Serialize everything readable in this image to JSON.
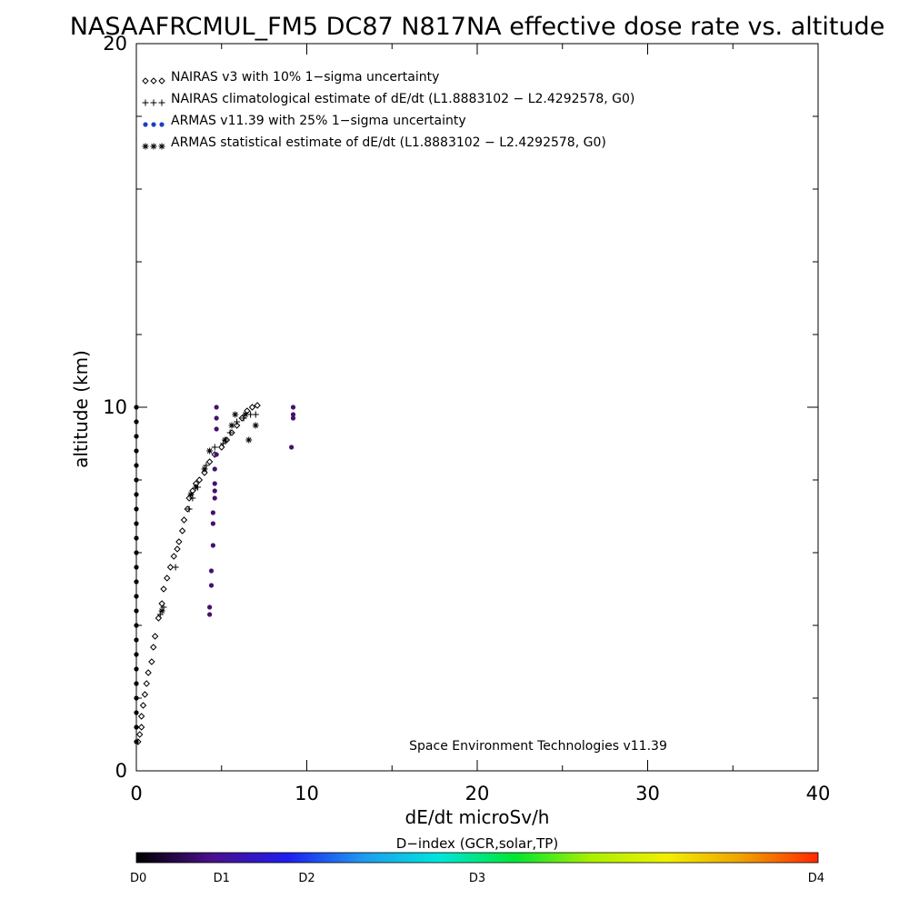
{
  "chart_data": {
    "type": "scatter",
    "title": "NASAAFRCMUL_FM5 DC87 N817NA effective dose rate vs. altitude",
    "xlabel": "dE/dt microSv/h",
    "ylabel": "altitude (km)",
    "xlim": [
      0,
      40
    ],
    "ylim": [
      0,
      20
    ],
    "x_ticks": [
      "0",
      "10",
      "20",
      "30",
      "40"
    ],
    "y_ticks": [
      "0",
      "10",
      "20"
    ],
    "grid": false,
    "legend_position": "top-left",
    "annotation": "Space Environment Technologies v11.39",
    "colorbar": {
      "title": "D−index (GCR,solar,TP)",
      "labels": [
        "D0",
        "D1",
        "D2",
        "D3",
        "D4"
      ],
      "positions": [
        0,
        0.125,
        0.25,
        0.5,
        1.0
      ],
      "colors": [
        "#000000",
        "#4b0f8c",
        "#1e1ef0",
        "#1e9bf0",
        "#00e6dc",
        "#00e632",
        "#aaf000",
        "#f0f000",
        "#f0a000",
        "#ff2800"
      ]
    },
    "series": [
      {
        "name": "NAIRAS v3 with 10% 1−sigma uncertainty",
        "marker": "diamond",
        "color": "#000000",
        "points": [
          [
            0.1,
            0.8
          ],
          [
            0.2,
            1.0
          ],
          [
            0.3,
            1.2
          ],
          [
            0.3,
            1.5
          ],
          [
            0.4,
            1.8
          ],
          [
            0.5,
            2.1
          ],
          [
            0.6,
            2.4
          ],
          [
            0.7,
            2.7
          ],
          [
            0.9,
            3.0
          ],
          [
            1.0,
            3.4
          ],
          [
            1.1,
            3.7
          ],
          [
            1.3,
            4.2
          ],
          [
            1.5,
            4.6
          ],
          [
            1.6,
            5.0
          ],
          [
            1.8,
            5.3
          ],
          [
            2.0,
            5.6
          ],
          [
            2.2,
            5.9
          ],
          [
            2.4,
            6.1
          ],
          [
            2.5,
            6.3
          ],
          [
            2.7,
            6.6
          ],
          [
            2.8,
            6.9
          ],
          [
            3.0,
            7.2
          ],
          [
            3.1,
            7.5
          ],
          [
            3.3,
            7.7
          ],
          [
            3.5,
            7.9
          ],
          [
            3.7,
            8.0
          ],
          [
            4.0,
            8.2
          ],
          [
            4.3,
            8.5
          ],
          [
            4.6,
            8.7
          ],
          [
            5.0,
            8.9
          ],
          [
            5.3,
            9.1
          ],
          [
            5.6,
            9.3
          ],
          [
            5.9,
            9.5
          ],
          [
            6.2,
            9.7
          ],
          [
            6.5,
            9.9
          ],
          [
            6.8,
            10.0
          ],
          [
            7.1,
            10.05
          ]
        ]
      },
      {
        "name": "NAIRAS climatological estimate of dE/dt (L1.8883102 − L2.4292578, G0)",
        "marker": "plus",
        "color": "#000000",
        "points": [
          [
            1.4,
            4.3
          ],
          [
            1.6,
            4.5
          ],
          [
            2.3,
            5.6
          ],
          [
            3.1,
            7.2
          ],
          [
            3.3,
            7.5
          ],
          [
            3.6,
            7.8
          ],
          [
            4.1,
            8.4
          ],
          [
            4.6,
            8.9
          ],
          [
            5.1,
            9.0
          ],
          [
            5.5,
            9.3
          ],
          [
            5.9,
            9.6
          ],
          [
            6.3,
            9.7
          ],
          [
            6.7,
            9.8
          ],
          [
            7.0,
            9.8
          ]
        ]
      },
      {
        "name": "ARMAS v11.39 with 25% 1−sigma uncertainty",
        "marker": "dot",
        "color": "#1f3fbf",
        "points": [
          [
            0,
            0.8
          ],
          [
            0,
            1.2
          ],
          [
            0,
            1.6
          ],
          [
            0,
            2.0
          ],
          [
            0,
            2.4
          ],
          [
            0,
            2.8
          ],
          [
            0,
            3.2
          ],
          [
            0,
            3.6
          ],
          [
            0,
            4.0
          ],
          [
            0,
            4.4
          ],
          [
            0,
            4.8
          ],
          [
            0,
            5.2
          ],
          [
            0,
            5.6
          ],
          [
            0,
            6.0
          ],
          [
            0,
            6.4
          ],
          [
            0,
            6.8
          ],
          [
            0,
            7.2
          ],
          [
            0,
            7.6
          ],
          [
            0,
            8.0
          ],
          [
            0,
            8.4
          ],
          [
            0,
            8.8
          ],
          [
            0,
            9.2
          ],
          [
            0,
            9.6
          ],
          [
            0,
            10.0
          ],
          [
            4.3,
            4.3
          ],
          [
            4.3,
            4.5
          ],
          [
            4.4,
            5.1
          ],
          [
            4.4,
            5.5
          ],
          [
            4.5,
            6.2
          ],
          [
            4.5,
            6.8
          ],
          [
            4.5,
            7.1
          ],
          [
            4.6,
            7.5
          ],
          [
            4.6,
            7.7
          ],
          [
            4.6,
            7.9
          ],
          [
            4.6,
            8.3
          ],
          [
            4.7,
            8.7
          ],
          [
            4.7,
            9.4
          ],
          [
            4.7,
            9.7
          ],
          [
            4.7,
            10.0
          ],
          [
            9.1,
            8.9
          ],
          [
            9.2,
            9.7
          ],
          [
            9.2,
            9.8
          ],
          [
            9.2,
            10.0
          ]
        ]
      },
      {
        "name": "ARMAS statistical estimate of dE/dt (L1.8883102 − L2.4292578, G0)",
        "marker": "asterisk",
        "color": "#000000",
        "points": [
          [
            1.5,
            4.4
          ],
          [
            3.2,
            7.6
          ],
          [
            3.5,
            7.8
          ],
          [
            4.0,
            8.3
          ],
          [
            4.3,
            8.8
          ],
          [
            5.2,
            9.1
          ],
          [
            5.6,
            9.5
          ],
          [
            5.8,
            9.8
          ],
          [
            6.4,
            9.8
          ],
          [
            7.0,
            9.5
          ],
          [
            6.6,
            9.1
          ]
        ]
      }
    ]
  }
}
